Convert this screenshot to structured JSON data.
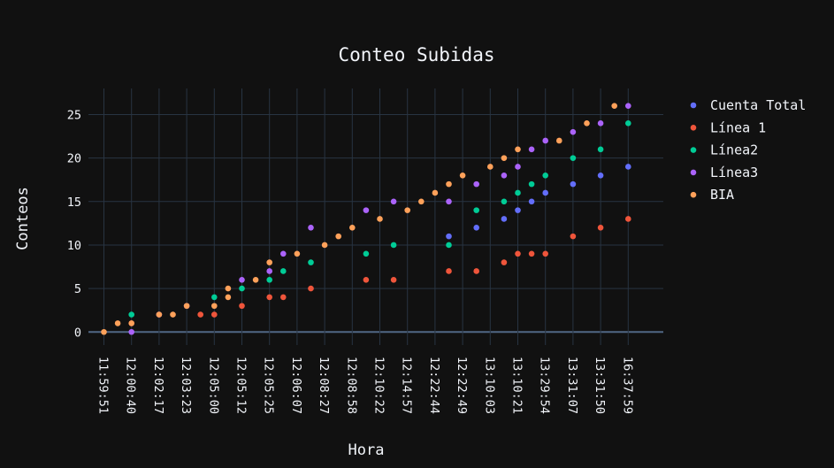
{
  "chart_data": {
    "type": "scatter",
    "title": "Conteo Subidas",
    "xlabel": "Hora",
    "ylabel": "Conteos",
    "categories": [
      "11:59:51",
      "12:00:40",
      "12:02:17",
      "12:03:23",
      "12:05:00",
      "12:05:12",
      "12:05:25",
      "12:06:07",
      "12:08:27",
      "12:08:58",
      "12:10:22",
      "12:14:57",
      "12:22:44",
      "12:22:49",
      "13:10:03",
      "13:10:21",
      "13:29:54",
      "13:31:07",
      "13:31:50",
      "16:37:59"
    ],
    "ylim": [
      -1.5,
      28
    ],
    "yticks": [
      0,
      5,
      10,
      15,
      20,
      25
    ],
    "legend_position": "top-right",
    "series": [
      {
        "name": "Cuenta Total",
        "color": "#636efa",
        "points": [
          [
            13.5,
            11
          ],
          [
            14.5,
            12
          ],
          [
            15.5,
            13
          ],
          [
            16,
            14
          ],
          [
            16.5,
            15
          ],
          [
            17,
            16
          ],
          [
            18,
            17
          ],
          [
            19,
            18
          ],
          [
            20,
            19
          ]
        ]
      },
      {
        "name": "Línea 1",
        "color": "#ef553b",
        "points": [
          [
            2,
            1
          ],
          [
            4.5,
            2
          ],
          [
            5,
            2
          ],
          [
            6,
            3
          ],
          [
            7,
            4
          ],
          [
            7.5,
            4
          ],
          [
            8.5,
            5
          ],
          [
            10.5,
            6
          ],
          [
            11.5,
            6
          ],
          [
            13.5,
            7
          ],
          [
            14.5,
            7
          ],
          [
            15.5,
            8
          ],
          [
            16,
            9
          ],
          [
            16.5,
            9
          ],
          [
            17,
            9
          ],
          [
            18,
            11
          ],
          [
            19,
            12
          ],
          [
            20,
            13
          ]
        ]
      },
      {
        "name": "Línea2",
        "color": "#00cc96",
        "points": [
          [
            2,
            2
          ],
          [
            5,
            4
          ],
          [
            6,
            5
          ],
          [
            7,
            6
          ],
          [
            7.5,
            7
          ],
          [
            8.5,
            8
          ],
          [
            10.5,
            9
          ],
          [
            11.5,
            10
          ],
          [
            13.5,
            10
          ],
          [
            14.5,
            14
          ],
          [
            15.5,
            15
          ],
          [
            16,
            16
          ],
          [
            16.5,
            17
          ],
          [
            17,
            18
          ],
          [
            18,
            20
          ],
          [
            19,
            21
          ],
          [
            20,
            24
          ]
        ]
      },
      {
        "name": "Línea3",
        "color": "#ab63fa",
        "points": [
          [
            2,
            0
          ],
          [
            3,
            2
          ],
          [
            4,
            3
          ],
          [
            6,
            6
          ],
          [
            7,
            7
          ],
          [
            7.5,
            9
          ],
          [
            8.5,
            12
          ],
          [
            10.5,
            14
          ],
          [
            11.5,
            15
          ],
          [
            13.5,
            15
          ],
          [
            14.5,
            17
          ],
          [
            15.5,
            18
          ],
          [
            16,
            19
          ],
          [
            16.5,
            21
          ],
          [
            17,
            22
          ],
          [
            18,
            23
          ],
          [
            19,
            24
          ],
          [
            20,
            26
          ]
        ]
      },
      {
        "name": "BIA",
        "color": "#ffa15a",
        "points": [
          [
            1,
            0
          ],
          [
            1.5,
            1
          ],
          [
            2,
            1
          ],
          [
            3,
            2
          ],
          [
            3.5,
            2
          ],
          [
            4,
            3
          ],
          [
            5,
            3
          ],
          [
            5.5,
            4
          ],
          [
            5.5,
            5
          ],
          [
            6.5,
            6
          ],
          [
            7,
            8
          ],
          [
            8,
            9
          ],
          [
            9,
            10
          ],
          [
            9.5,
            11
          ],
          [
            10,
            12
          ],
          [
            11,
            13
          ],
          [
            12,
            14
          ],
          [
            12.5,
            15
          ],
          [
            13,
            16
          ],
          [
            13.5,
            17
          ],
          [
            14,
            18
          ],
          [
            15,
            19
          ],
          [
            15.5,
            20
          ],
          [
            16,
            21
          ],
          [
            17.5,
            22
          ],
          [
            18.5,
            24
          ],
          [
            19.5,
            26
          ]
        ]
      }
    ]
  },
  "colors": {
    "background": "#111111",
    "grid": "#283442",
    "zeroline": "#506784",
    "text": "#f2f5fa"
  }
}
